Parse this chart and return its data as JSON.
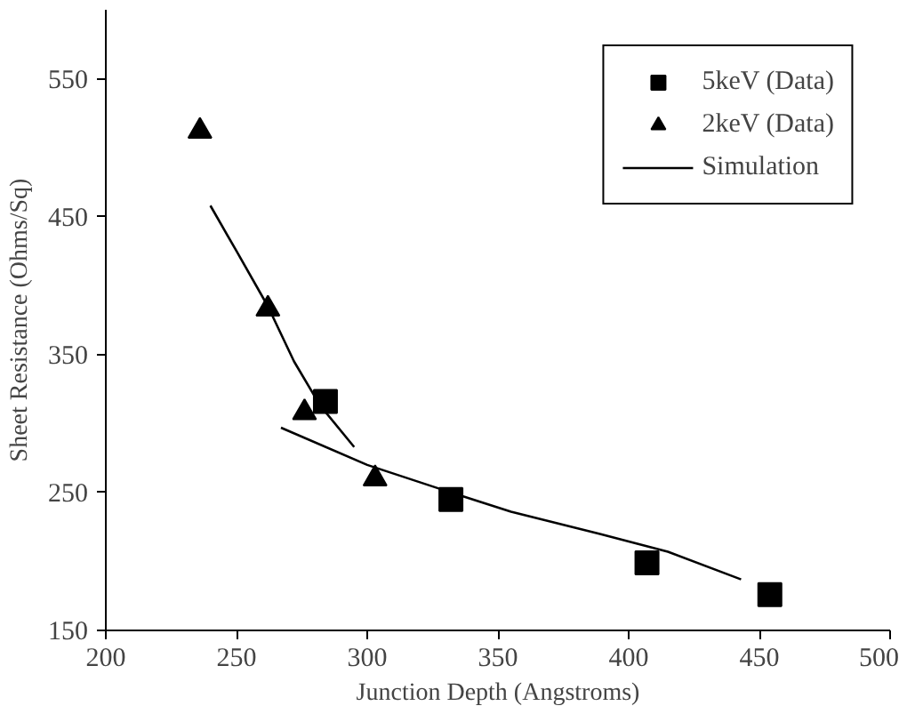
{
  "chart_data": {
    "type": "scatter",
    "xlabel": "Junction Depth (Angstroms)",
    "ylabel": "Sheet Resistance (Ohms/Sq)",
    "xlim": [
      200,
      500
    ],
    "xticks": [
      200,
      250,
      300,
      350,
      400,
      450,
      500
    ],
    "ylim": [
      150,
      600
    ],
    "yticks": [
      150,
      250,
      350,
      450,
      550
    ],
    "grid": false,
    "legend": "top right",
    "series": [
      {
        "name": "5keV (Data)",
        "marker": "square",
        "color": "#000000",
        "x": [
          284,
          332,
          407,
          454
        ],
        "values": [
          316,
          245,
          199,
          176
        ]
      },
      {
        "name": "2keV (Data)",
        "marker": "triangle",
        "color": "#000000",
        "x": [
          236,
          262,
          276,
          303
        ],
        "values": [
          512,
          383,
          308,
          260
        ]
      },
      {
        "name": "Simulation",
        "type": "line",
        "line_style": "solid",
        "color": "#000000",
        "x": [
          240,
          250,
          262,
          272,
          282,
          295,
          null,
          267,
          300,
          332,
          355,
          389,
          415,
          443
        ],
        "values": [
          458,
          425,
          385,
          345,
          313,
          283,
          null,
          297,
          270,
          250,
          236,
          220,
          207,
          187
        ]
      }
    ]
  }
}
